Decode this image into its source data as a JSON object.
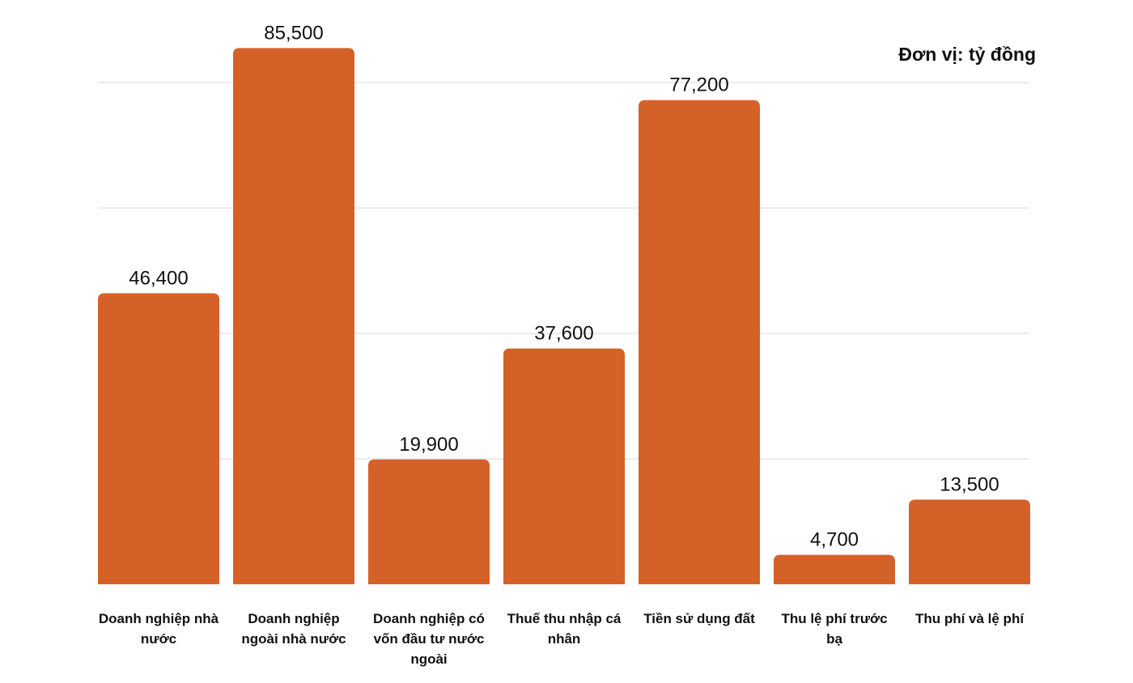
{
  "chart_data": {
    "type": "bar",
    "unit_label": "Đơn vị: tỷ đồng",
    "categories": [
      "Doanh nghiệp nhà nước",
      "Doanh nghiệp ngoài nhà nước",
      "Doanh nghiệp có vốn đầu tư nước ngoài",
      "Thuế thu nhập cá nhân",
      "Tiền sử dụng đất",
      "Thu lệ phí trước bạ",
      "Thu phí và lệ phí"
    ],
    "values": [
      46400,
      85500,
      19900,
      37600,
      77200,
      4700,
      13500
    ],
    "value_labels": [
      "46,400",
      "85,500",
      "19,900",
      "37,600",
      "77,200",
      "4,700",
      "13,500"
    ],
    "ylim": [
      0,
      80000
    ],
    "gridlines": [
      20000,
      40000,
      60000,
      80000
    ],
    "bar_color": "#d46228",
    "grid_color": "#d9d9d9"
  }
}
